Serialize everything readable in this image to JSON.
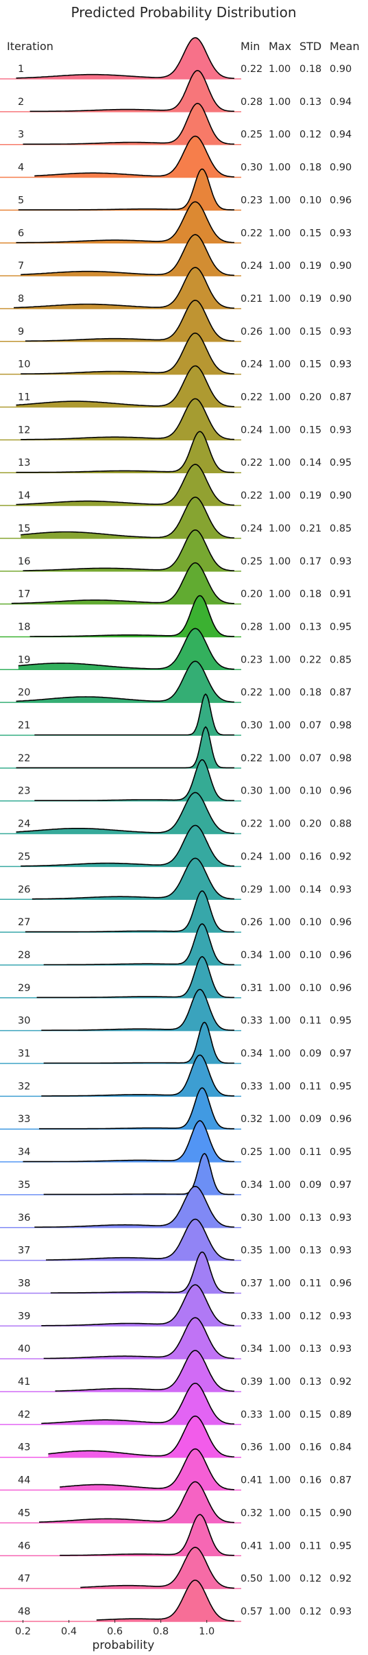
{
  "chart_data": {
    "type": "ridgeline",
    "title": "Predicted Probability Distribution",
    "row_header": "Iteration",
    "stat_headers": [
      "Min",
      "Max",
      "STD",
      "Mean"
    ],
    "xlabel": "probability",
    "xlim": [
      0.1,
      1.15
    ],
    "xticks": [
      0.2,
      0.4,
      0.6,
      0.8,
      1.0
    ],
    "rows": [
      {
        "iteration": "1",
        "color": "#f77189",
        "min": "0.22",
        "max": "1.00",
        "std": "0.18",
        "mean": "0.90"
      },
      {
        "iteration": "2",
        "color": "#f7767a",
        "min": "0.28",
        "max": "1.00",
        "std": "0.13",
        "mean": "0.94"
      },
      {
        "iteration": "3",
        "color": "#f77a68",
        "min": "0.25",
        "max": "1.00",
        "std": "0.12",
        "mean": "0.94"
      },
      {
        "iteration": "4",
        "color": "#f67e4b",
        "min": "0.30",
        "max": "1.00",
        "std": "0.18",
        "mean": "0.90"
      },
      {
        "iteration": "5",
        "color": "#e8843a",
        "min": "0.23",
        "max": "1.00",
        "std": "0.10",
        "mean": "0.96"
      },
      {
        "iteration": "6",
        "color": "#dc8932",
        "min": "0.22",
        "max": "1.00",
        "std": "0.15",
        "mean": "0.93"
      },
      {
        "iteration": "7",
        "color": "#d28d32",
        "min": "0.24",
        "max": "1.00",
        "std": "0.19",
        "mean": "0.90"
      },
      {
        "iteration": "8",
        "color": "#c89132",
        "min": "0.21",
        "max": "1.00",
        "std": "0.19",
        "mean": "0.90"
      },
      {
        "iteration": "9",
        "color": "#bf9432",
        "min": "0.26",
        "max": "1.00",
        "std": "0.15",
        "mean": "0.93"
      },
      {
        "iteration": "10",
        "color": "#b79732",
        "min": "0.24",
        "max": "1.00",
        "std": "0.15",
        "mean": "0.93"
      },
      {
        "iteration": "11",
        "color": "#ae9a31",
        "min": "0.22",
        "max": "1.00",
        "std": "0.20",
        "mean": "0.87"
      },
      {
        "iteration": "12",
        "color": "#a59c31",
        "min": "0.24",
        "max": "1.00",
        "std": "0.15",
        "mean": "0.93"
      },
      {
        "iteration": "13",
        "color": "#9c9f31",
        "min": "0.22",
        "max": "1.00",
        "std": "0.14",
        "mean": "0.95"
      },
      {
        "iteration": "14",
        "color": "#92a131",
        "min": "0.22",
        "max": "1.00",
        "std": "0.19",
        "mean": "0.90"
      },
      {
        "iteration": "15",
        "color": "#86a431",
        "min": "0.24",
        "max": "1.00",
        "std": "0.21",
        "mean": "0.85"
      },
      {
        "iteration": "16",
        "color": "#77a831",
        "min": "0.25",
        "max": "1.00",
        "std": "0.17",
        "mean": "0.93"
      },
      {
        "iteration": "17",
        "color": "#61ab31",
        "min": "0.20",
        "max": "1.00",
        "std": "0.18",
        "mean": "0.91"
      },
      {
        "iteration": "18",
        "color": "#3bb131",
        "min": "0.28",
        "max": "1.00",
        "std": "0.13",
        "mean": "0.95"
      },
      {
        "iteration": "19",
        "color": "#33b05d",
        "min": "0.23",
        "max": "1.00",
        "std": "0.22",
        "mean": "0.85"
      },
      {
        "iteration": "20",
        "color": "#34ae74",
        "min": "0.22",
        "max": "1.00",
        "std": "0.18",
        "mean": "0.87"
      },
      {
        "iteration": "21",
        "color": "#35ad82",
        "min": "0.30",
        "max": "1.00",
        "std": "0.07",
        "mean": "0.98"
      },
      {
        "iteration": "22",
        "color": "#35ac8c",
        "min": "0.22",
        "max": "1.00",
        "std": "0.07",
        "mean": "0.98"
      },
      {
        "iteration": "23",
        "color": "#35ab94",
        "min": "0.30",
        "max": "1.00",
        "std": "0.10",
        "mean": "0.96"
      },
      {
        "iteration": "24",
        "color": "#36aa9a",
        "min": "0.22",
        "max": "1.00",
        "std": "0.20",
        "mean": "0.88"
      },
      {
        "iteration": "25",
        "color": "#36a9a0",
        "min": "0.24",
        "max": "1.00",
        "std": "0.16",
        "mean": "0.92"
      },
      {
        "iteration": "26",
        "color": "#37a8a5",
        "min": "0.29",
        "max": "1.00",
        "std": "0.14",
        "mean": "0.93"
      },
      {
        "iteration": "27",
        "color": "#37a7aa",
        "min": "0.26",
        "max": "1.00",
        "std": "0.10",
        "mean": "0.96"
      },
      {
        "iteration": "28",
        "color": "#38a6b0",
        "min": "0.34",
        "max": "1.00",
        "std": "0.10",
        "mean": "0.96"
      },
      {
        "iteration": "29",
        "color": "#39a5b6",
        "min": "0.31",
        "max": "1.00",
        "std": "0.10",
        "mean": "0.96"
      },
      {
        "iteration": "30",
        "color": "#3aa3bd",
        "min": "0.33",
        "max": "1.00",
        "std": "0.11",
        "mean": "0.95"
      },
      {
        "iteration": "31",
        "color": "#3ba1c6",
        "min": "0.34",
        "max": "1.00",
        "std": "0.09",
        "mean": "0.97"
      },
      {
        "iteration": "32",
        "color": "#3d9ed2",
        "min": "0.33",
        "max": "1.00",
        "std": "0.11",
        "mean": "0.95"
      },
      {
        "iteration": "33",
        "color": "#419ae2",
        "min": "0.32",
        "max": "1.00",
        "std": "0.09",
        "mean": "0.96"
      },
      {
        "iteration": "34",
        "color": "#5295f4",
        "min": "0.25",
        "max": "1.00",
        "std": "0.11",
        "mean": "0.95"
      },
      {
        "iteration": "35",
        "color": "#6c8ff5",
        "min": "0.34",
        "max": "1.00",
        "std": "0.09",
        "mean": "0.97"
      },
      {
        "iteration": "36",
        "color": "#8089f5",
        "min": "0.30",
        "max": "1.00",
        "std": "0.13",
        "mean": "0.93"
      },
      {
        "iteration": "37",
        "color": "#9184f5",
        "min": "0.35",
        "max": "1.00",
        "std": "0.13",
        "mean": "0.93"
      },
      {
        "iteration": "38",
        "color": "#a17ff5",
        "min": "0.37",
        "max": "1.00",
        "std": "0.11",
        "mean": "0.96"
      },
      {
        "iteration": "39",
        "color": "#b079f5",
        "min": "0.33",
        "max": "1.00",
        "std": "0.12",
        "mean": "0.93"
      },
      {
        "iteration": "40",
        "color": "#c073f5",
        "min": "0.34",
        "max": "1.00",
        "std": "0.13",
        "mean": "0.93"
      },
      {
        "iteration": "41",
        "color": "#d16bf5",
        "min": "0.39",
        "max": "1.00",
        "std": "0.13",
        "mean": "0.92"
      },
      {
        "iteration": "42",
        "color": "#e264f4",
        "min": "0.33",
        "max": "1.00",
        "std": "0.15",
        "mean": "0.89"
      },
      {
        "iteration": "43",
        "color": "#f25cea",
        "min": "0.36",
        "max": "1.00",
        "std": "0.16",
        "mean": "0.84"
      },
      {
        "iteration": "44",
        "color": "#f55fd5",
        "min": "0.41",
        "max": "1.00",
        "std": "0.16",
        "mean": "0.87"
      },
      {
        "iteration": "45",
        "color": "#f563c3",
        "min": "0.32",
        "max": "1.00",
        "std": "0.15",
        "mean": "0.90"
      },
      {
        "iteration": "46",
        "color": "#f667b4",
        "min": "0.41",
        "max": "1.00",
        "std": "0.11",
        "mean": "0.95"
      },
      {
        "iteration": "47",
        "color": "#f66ba6",
        "min": "0.50",
        "max": "1.00",
        "std": "0.12",
        "mean": "0.92"
      },
      {
        "iteration": "48",
        "color": "#f76e97",
        "min": "0.57",
        "max": "1.00",
        "std": "0.12",
        "mean": "0.93"
      }
    ]
  }
}
